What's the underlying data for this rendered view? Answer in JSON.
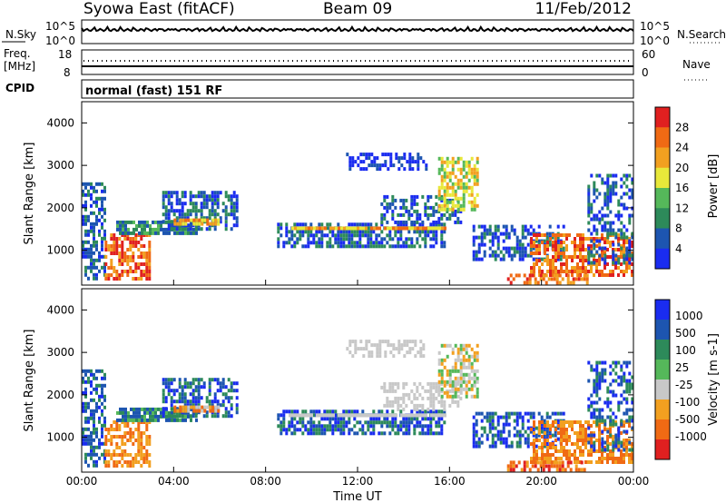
{
  "header": {
    "title": "Syowa East (fitACF)",
    "beam": "Beam 09",
    "date": "11/Feb/2012"
  },
  "sky_panel": {
    "left_label": "N.Sky",
    "right_label": "N.Search",
    "tick_top": "10^5",
    "tick_bottom": "10^0"
  },
  "freq_panel": {
    "label_line1": "Freq.",
    "label_line2": "[MHz]",
    "left_ticks": [
      "18",
      "8"
    ],
    "right_label": "Nave",
    "right_ticks": [
      "60",
      "0"
    ]
  },
  "cpid": {
    "label": "CPID",
    "text": "normal (fast) 151 RF"
  },
  "colors": {
    "power_palette": [
      "#1a2cf0",
      "#1d55b0",
      "#2d8a5a",
      "#55b85a",
      "#e8e83a",
      "#f2a020",
      "#f06a14",
      "#e02020"
    ],
    "velocity_palette": [
      "#1a2cf0",
      "#1d55b0",
      "#2d8a5a",
      "#55b85a",
      "#c8c8c8",
      "#f2a020",
      "#f06a14",
      "#e02020"
    ]
  },
  "chart_data": [
    {
      "type": "heatmap",
      "name": "power",
      "ylabel": "Slant Range [km]",
      "yticks": [
        "1000",
        "2000",
        "3000",
        "4000"
      ],
      "ylim": [
        180,
        4500
      ],
      "xlim": [
        0,
        24
      ],
      "colorbar_label": "Power [dB]",
      "colorbar_ticks": [
        "4",
        "8",
        "12",
        "16",
        "20",
        "24",
        "28"
      ],
      "grid": false
    },
    {
      "type": "heatmap",
      "name": "velocity",
      "ylabel": "Slant Range [km]",
      "yticks": [
        "1000",
        "2000",
        "3000",
        "4000"
      ],
      "ylim": [
        180,
        4500
      ],
      "xlim": [
        0,
        24
      ],
      "xticks": [
        "00:00",
        "04:00",
        "08:00",
        "12:00",
        "16:00",
        "20:00",
        "00:00"
      ],
      "xlabel": "Time UT",
      "colorbar_label": "Velocity [m s-1]",
      "colorbar_ticks": [
        "1000",
        "500",
        "100",
        "25",
        "-25",
        "-100",
        "-500",
        "-1000"
      ],
      "grid": false
    }
  ]
}
